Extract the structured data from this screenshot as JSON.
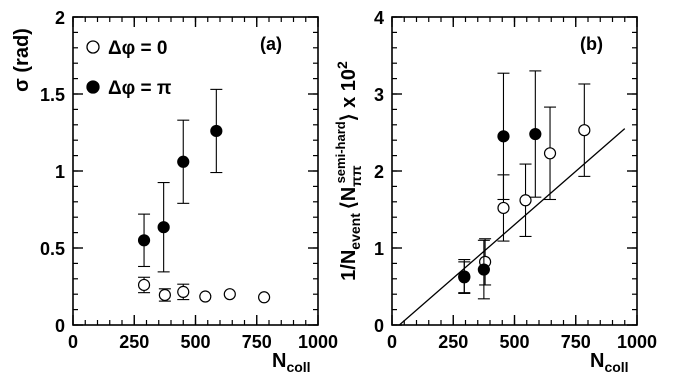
{
  "chart_data": [
    {
      "type": "scatter",
      "panel_label": "(a)",
      "xlabel": {
        "main": "N",
        "sub": "coll"
      },
      "ylabel": "σ (rad)",
      "xlim": [
        0,
        1000
      ],
      "ylim": [
        0,
        2
      ],
      "xticks": [
        0,
        250,
        500,
        750,
        1000
      ],
      "xtick_labels": [
        "0",
        "250",
        "500",
        "750",
        "1000"
      ],
      "yticks": [
        0,
        0.5,
        1,
        1.5,
        2
      ],
      "ytick_labels": [
        "0",
        "0.5",
        "1",
        "1.5",
        "2"
      ],
      "x_minor_step": 50,
      "y_minor_step": 0.1,
      "grid": false,
      "legend_position": "top-left",
      "series": [
        {
          "name": "Δφ = 0",
          "marker": "open-circle",
          "points": [
            {
              "x": 290,
              "y": 0.26,
              "err": 0.05
            },
            {
              "x": 375,
              "y": 0.195,
              "err": 0.04
            },
            {
              "x": 450,
              "y": 0.215,
              "err": 0.05
            },
            {
              "x": 540,
              "y": 0.185,
              "err": 0.0
            },
            {
              "x": 640,
              "y": 0.2,
              "err": 0.0
            },
            {
              "x": 780,
              "y": 0.18,
              "err": 0.0
            }
          ]
        },
        {
          "name": "Δφ = π",
          "marker": "filled-circle",
          "points": [
            {
              "x": 290,
              "y": 0.55,
              "err": 0.17
            },
            {
              "x": 370,
              "y": 0.635,
              "err": 0.29
            },
            {
              "x": 450,
              "y": 1.06,
              "err": 0.27
            },
            {
              "x": 585,
              "y": 1.26,
              "err": 0.27
            }
          ]
        }
      ]
    },
    {
      "type": "scatter",
      "panel_label": "(b)",
      "xlabel": {
        "main": "N",
        "sub": "coll"
      },
      "ylabel": "1/N_event ⟨N_ππ^semi-hard⟩ x 10^2",
      "ylabel_parts": {
        "prefix": "1/N",
        "event": "event",
        "bracket_open": "⟨N",
        "pipi": "ππ",
        "semihard": "semi-hard",
        "bracket_close": "⟩ x 10",
        "exp": "2"
      },
      "xlim": [
        0,
        1000
      ],
      "ylim": [
        0,
        4
      ],
      "xticks": [
        0,
        250,
        500,
        750,
        1000
      ],
      "xtick_labels": [
        "0",
        "250",
        "500",
        "750",
        "1000"
      ],
      "yticks": [
        0,
        1,
        2,
        3,
        4
      ],
      "ytick_labels": [
        "0",
        "1",
        "2",
        "3",
        "4"
      ],
      "x_minor_step": 50,
      "y_minor_step": 0.2,
      "grid": false,
      "line": {
        "x": [
          30,
          950
        ],
        "y": [
          0.0,
          2.55
        ]
      },
      "series": [
        {
          "name": "Δφ = 0",
          "marker": "open-circle",
          "points": [
            {
              "x": 295,
              "y": 0.62,
              "err": 0.2
            },
            {
              "x": 380,
              "y": 0.82,
              "err": 0.3
            },
            {
              "x": 455,
              "y": 1.52,
              "err": 0.43
            },
            {
              "x": 545,
              "y": 1.62,
              "err": 0.47
            },
            {
              "x": 645,
              "y": 2.23,
              "err": 0.6
            },
            {
              "x": 785,
              "y": 2.53,
              "err": 0.6
            }
          ]
        },
        {
          "name": "Δφ = π",
          "marker": "filled-circle",
          "points": [
            {
              "x": 295,
              "y": 0.63,
              "err": 0.22
            },
            {
              "x": 375,
              "y": 0.72,
              "err": 0.38
            },
            {
              "x": 455,
              "y": 2.45,
              "err": 0.82
            },
            {
              "x": 585,
              "y": 2.48,
              "err": 0.82
            }
          ]
        }
      ]
    }
  ]
}
